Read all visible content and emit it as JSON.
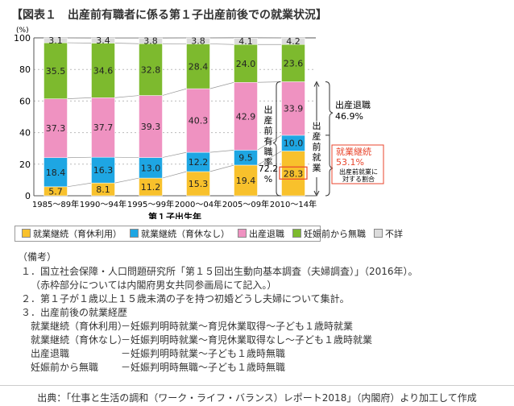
{
  "title": "【図表１　出産前有職者に係る第１子出産前後での就業状況】",
  "chart_data": {
    "type": "bar",
    "stacked": true,
    "ylabel": "(%)",
    "xlabel": "第１子出生年",
    "ylim": [
      0,
      100
    ],
    "yticks": [
      0,
      20,
      40,
      60,
      80,
      100
    ],
    "categories": [
      "1985～89年",
      "1990～94年",
      "1995～99年",
      "2000～04年",
      "2005～09年",
      "2010～14年"
    ],
    "series": [
      {
        "name": "就業継続（育休利用）",
        "color": "#f8c12c",
        "values": [
          5.7,
          8.1,
          11.2,
          15.3,
          19.4,
          28.3
        ]
      },
      {
        "name": "就業継続（育休なし）",
        "color": "#1ea6e3",
        "values": [
          18.4,
          16.3,
          13.0,
          12.2,
          9.5,
          10.0
        ]
      },
      {
        "name": "出産退職",
        "color": "#ef92c1",
        "values": [
          37.3,
          37.7,
          39.3,
          40.3,
          42.9,
          33.9
        ]
      },
      {
        "name": "妊娠前から無職",
        "color": "#7dba2e",
        "values": [
          35.5,
          34.6,
          32.8,
          28.4,
          24.0,
          23.6
        ]
      },
      {
        "name": "不詳",
        "color": "#dcdcdc",
        "values": [
          3.1,
          3.4,
          3.8,
          3.8,
          4.1,
          4.2
        ]
      }
    ],
    "legend_placement": "bottom",
    "annotations": {
      "prework_rate": "出産前有職率",
      "prework_value": "72.2",
      "prework_pct": "%",
      "prework_employment": "出産前就業",
      "quit_label": "出産退職",
      "quit_value": "46.9%",
      "continue_label": "就業継続",
      "continue_value": "53.1%",
      "continue_note1": "出産前就業に",
      "continue_note2": "対する割合",
      "accent": "#e8452c"
    }
  },
  "notes": {
    "heading": "（備考）",
    "lines": [
      "１．国立社会保障・人口問題研究所「第１５回出生動向基本調査（夫婦調査）」（2016年）。",
      "（赤枠部分については内閣府男女共同参画局にて記入。）",
      "２．第１子が１歳以上１５歳未満の子を持つ初婚どうし夫婦について集計。",
      "３．出産前後の就業経歴"
    ],
    "definitions": [
      {
        "term": "就業継続（育休利用）",
        "desc": "－妊娠判明時就業～育児休業取得～子ども１歳時就業"
      },
      {
        "term": "就業継続（育休なし）",
        "desc": "－妊娠判明時就業～育児休業取得なし～子ども１歳時就業"
      },
      {
        "term": "出産退職",
        "desc": "－妊娠判明時就業～子ども１歳時無職"
      },
      {
        "term": "妊娠前から無職",
        "desc": "－妊娠判明時無職～子ども１歳時無職"
      }
    ]
  },
  "footer": "出典：「仕事と生活の調和（ワーク・ライフ・バランス）レポート2018」（内閣府）より加工して作成"
}
